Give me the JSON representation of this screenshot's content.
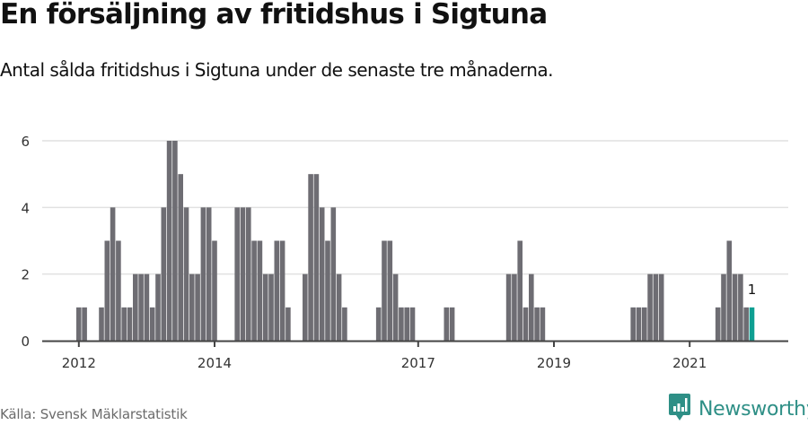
{
  "header": {
    "title": "En försäljning av fritidshus i Sigtuna",
    "subtitle": "Antal sålda fritidshus i Sigtuna under de senaste tre månaderna."
  },
  "footer": {
    "source": "Källa: Svensk Mäklarstatistik",
    "brand": "Newsworthy",
    "brand_icon": "bar-chart-speech-bubble-icon"
  },
  "colors": {
    "bar": "#6e6d73",
    "highlight": "#0e9f92",
    "grid": "#e1e1e1",
    "axis": "#444444",
    "brand": "#2e8f86"
  },
  "chart_data": {
    "type": "bar",
    "title": "En försäljning av fritidshus i Sigtuna",
    "subtitle": "Antal sålda fritidshus i Sigtuna under de senaste tre månaderna.",
    "xlabel": "",
    "ylabel": "",
    "ylim": [
      0,
      6
    ],
    "yticks": [
      0,
      2,
      4,
      6
    ],
    "grid": true,
    "x_start": "2012-01",
    "x_end": "2021-12",
    "frequency": "monthly",
    "xticks": [
      {
        "label": "2012",
        "index": 0
      },
      {
        "label": "2014",
        "index": 24
      },
      {
        "label": "2017",
        "index": 60
      },
      {
        "label": "2019",
        "index": 84
      },
      {
        "label": "2021",
        "index": 108
      }
    ],
    "values": [
      1,
      1,
      0,
      0,
      1,
      3,
      4,
      3,
      1,
      1,
      2,
      2,
      2,
      1,
      2,
      4,
      6,
      6,
      5,
      4,
      2,
      2,
      4,
      4,
      3,
      0,
      0,
      0,
      4,
      4,
      4,
      3,
      3,
      2,
      2,
      3,
      3,
      1,
      0,
      0,
      2,
      5,
      5,
      4,
      3,
      4,
      2,
      1,
      0,
      0,
      0,
      0,
      0,
      1,
      3,
      3,
      2,
      1,
      1,
      1,
      0,
      0,
      0,
      0,
      0,
      1,
      1,
      0,
      0,
      0,
      0,
      0,
      0,
      0,
      0,
      0,
      2,
      2,
      3,
      1,
      2,
      1,
      1,
      0,
      0,
      0,
      0,
      0,
      0,
      0,
      0,
      0,
      0,
      0,
      0,
      0,
      0,
      0,
      1,
      1,
      1,
      2,
      2,
      2,
      0,
      0,
      0,
      0,
      0,
      0,
      0,
      0,
      0,
      1,
      2,
      3,
      2,
      2,
      1,
      1
    ],
    "highlight_index": 119,
    "annotations": [
      {
        "index": 119,
        "text": "1"
      }
    ],
    "legend": null
  }
}
